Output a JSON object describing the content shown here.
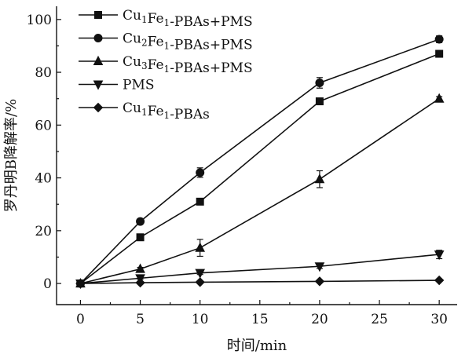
{
  "chart_data": {
    "type": "line",
    "x": [
      0,
      5,
      10,
      20,
      30
    ],
    "xlim": [
      -2,
      31.5
    ],
    "ylim": [
      -8,
      105
    ],
    "xticks": [
      0,
      5,
      10,
      15,
      20,
      25,
      30
    ],
    "yticks": [
      0,
      20,
      40,
      60,
      80,
      100
    ],
    "xlabel": "时间/min",
    "ylabel": "罗丹明B降解率/%",
    "legend_position": "top-left",
    "grid": false,
    "series": [
      {
        "name": "Cu1Fe1-PBAs+PMS",
        "label_parts": [
          [
            "Cu",
            ""
          ],
          [
            "1",
            "sub"
          ],
          [
            "Fe",
            ""
          ],
          [
            "1",
            "sub"
          ],
          [
            "-PBAs+PMS",
            ""
          ]
        ],
        "marker": "square",
        "values": [
          0,
          17.5,
          31,
          69,
          87
        ],
        "errors": [
          0,
          0.8,
          0.8,
          1.0,
          0.8
        ]
      },
      {
        "name": "Cu2Fe1-PBAs+PMS",
        "label_parts": [
          [
            "Cu",
            ""
          ],
          [
            "2",
            "sub"
          ],
          [
            "Fe",
            ""
          ],
          [
            "1",
            "sub"
          ],
          [
            "-PBAs+PMS",
            ""
          ]
        ],
        "marker": "circle",
        "values": [
          0,
          23.5,
          42,
          76,
          92.5
        ],
        "errors": [
          0,
          0.8,
          1.8,
          2.0,
          1.3
        ]
      },
      {
        "name": "Cu3Fe1-PBAs+PMS",
        "label_parts": [
          [
            "Cu",
            ""
          ],
          [
            "3",
            "sub"
          ],
          [
            "Fe",
            ""
          ],
          [
            "1",
            "sub"
          ],
          [
            "-PBAs+PMS",
            ""
          ]
        ],
        "marker": "triangle-up",
        "values": [
          0,
          5.5,
          13.5,
          39.5,
          70
        ],
        "errors": [
          0,
          0.6,
          3.2,
          3.2,
          0.8
        ]
      },
      {
        "name": "PMS",
        "label_parts": [
          [
            "PMS",
            ""
          ]
        ],
        "marker": "triangle-down",
        "values": [
          0,
          2,
          4,
          6.5,
          11
        ],
        "errors": [
          0,
          0.4,
          0.6,
          0.8,
          1.6
        ]
      },
      {
        "name": "Cu1Fe1-PBAs",
        "label_parts": [
          [
            "Cu",
            ""
          ],
          [
            "1",
            "sub"
          ],
          [
            "Fe",
            ""
          ],
          [
            "1",
            "sub"
          ],
          [
            "-PBAs",
            ""
          ]
        ],
        "marker": "diamond",
        "values": [
          0,
          0.3,
          0.5,
          0.8,
          1.2
        ],
        "errors": [
          0,
          0,
          0,
          0,
          0
        ]
      }
    ]
  }
}
